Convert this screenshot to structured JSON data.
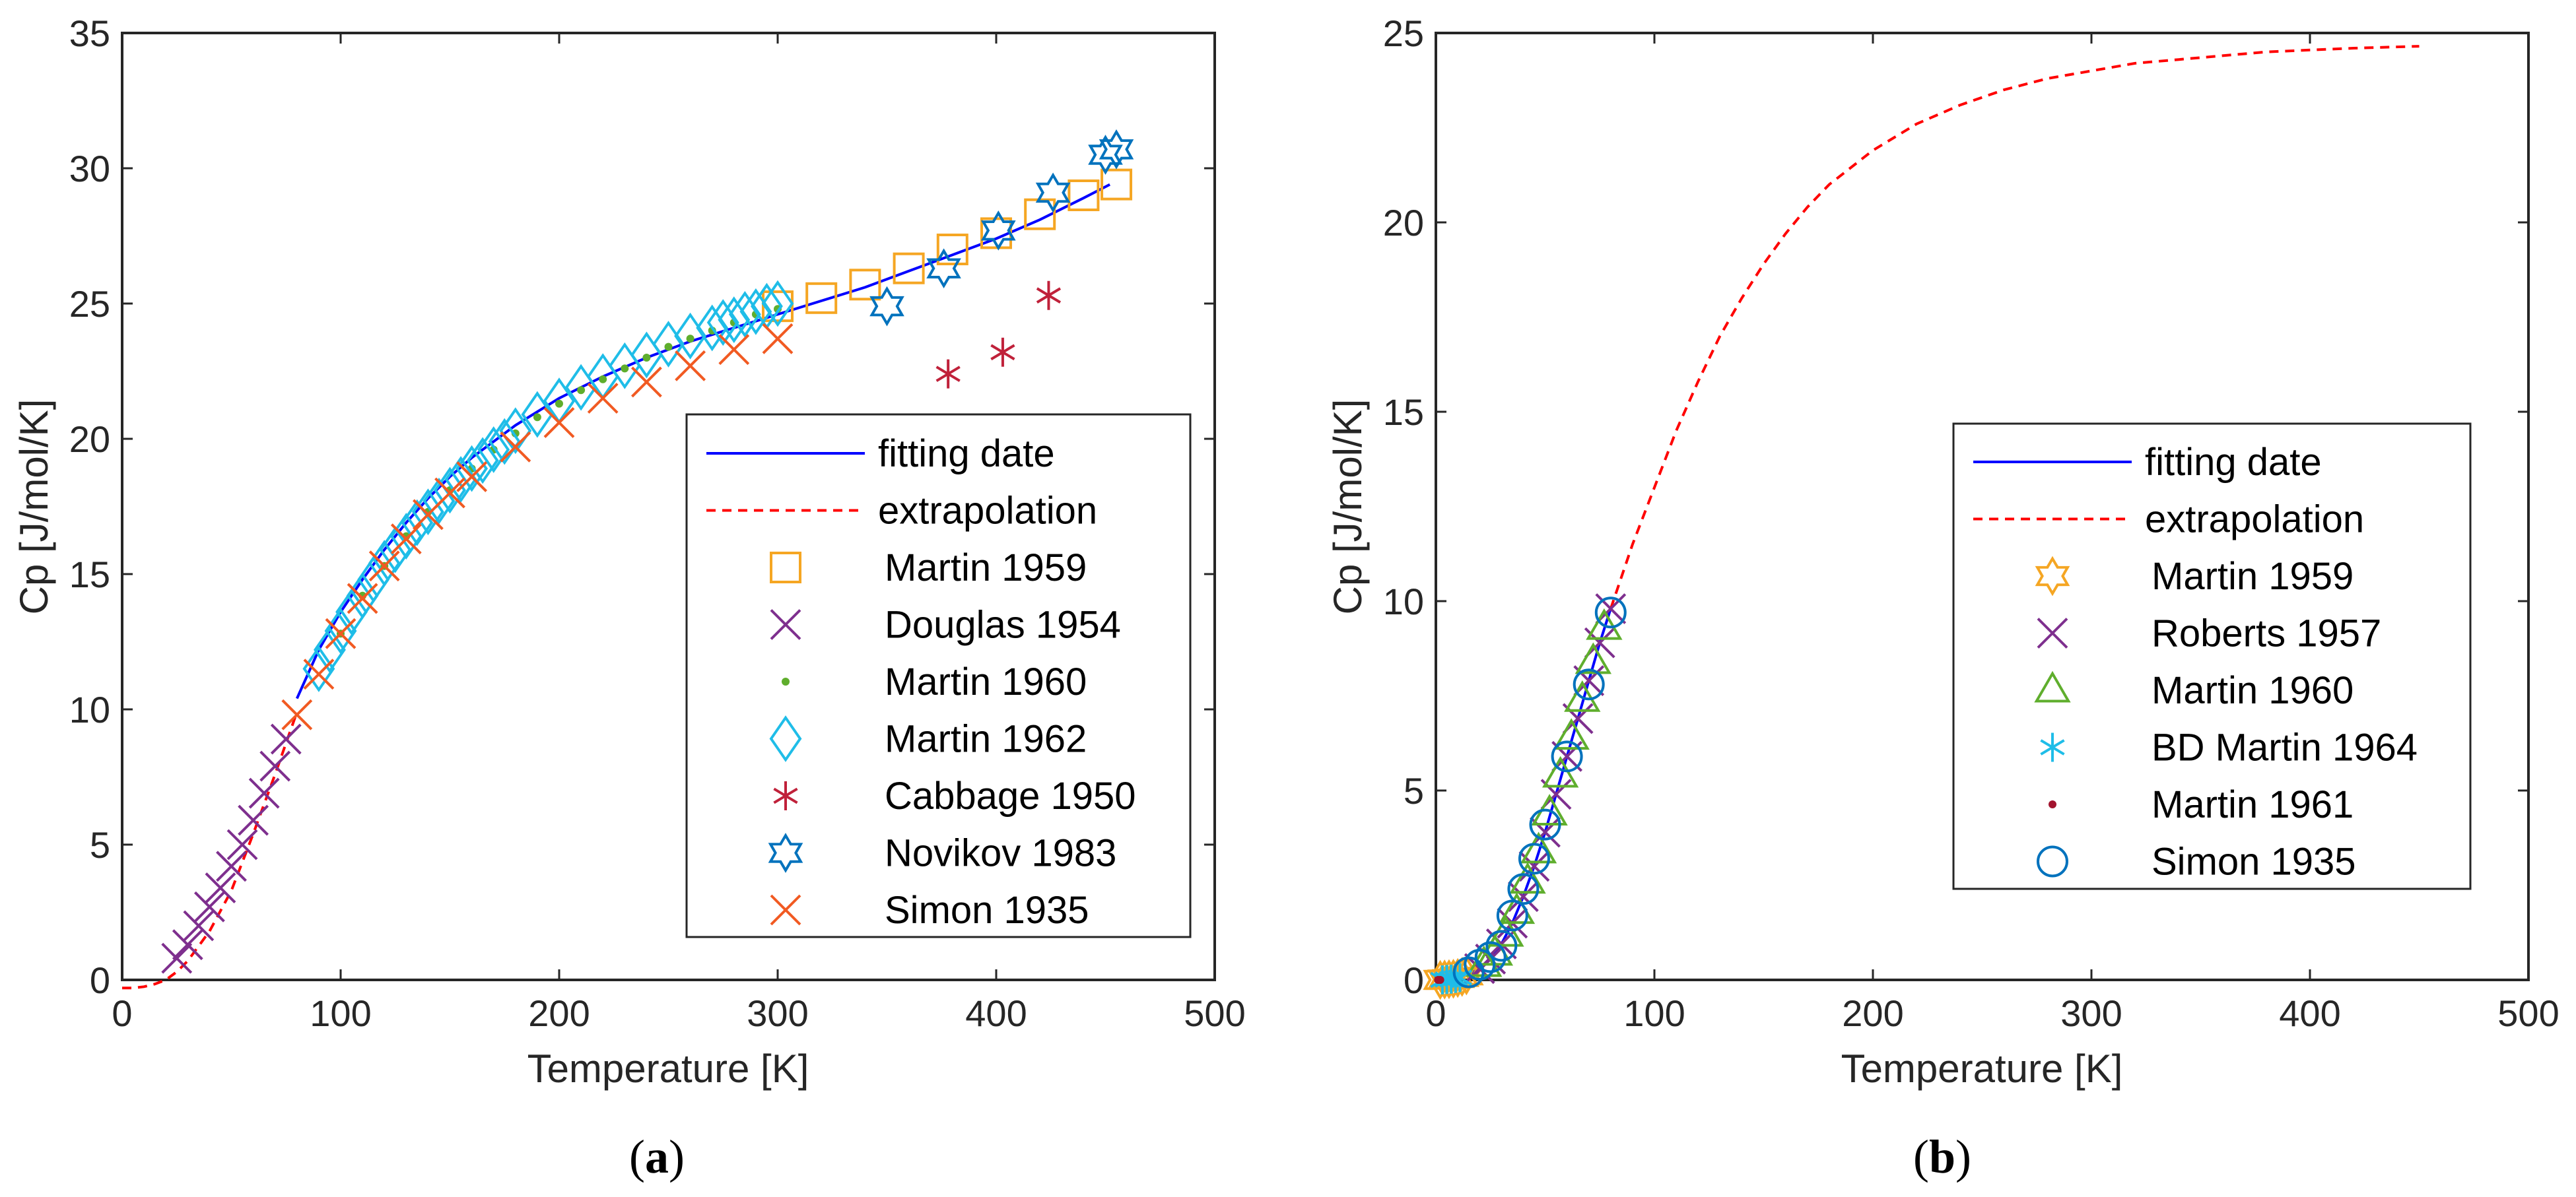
{
  "chart_data": [
    {
      "type": "scatter",
      "id": "a",
      "caption_letter": "a",
      "xlabel": "Temperature [K]",
      "ylabel": "Cp [J/mol/K]",
      "xlim": [
        0,
        500
      ],
      "ylim": [
        0,
        35
      ],
      "xticks": [
        0,
        100,
        200,
        300,
        400,
        500
      ],
      "yticks": [
        0,
        5,
        10,
        15,
        20,
        25,
        30,
        35
      ],
      "legend_position": "lower-right",
      "lines": [
        {
          "name": "fitting date",
          "style": "solid",
          "color": "#0000ff",
          "x": [
            80,
            90,
            100,
            110,
            120,
            130,
            140,
            150,
            160,
            170,
            180,
            200,
            220,
            240,
            260,
            280,
            300,
            320,
            340,
            360,
            380,
            400,
            420,
            440,
            452
          ],
          "y": [
            10.4,
            12.2,
            13.6,
            14.8,
            15.9,
            16.9,
            17.8,
            18.6,
            19.3,
            19.9,
            20.5,
            21.5,
            22.3,
            23.0,
            23.6,
            24.1,
            24.6,
            25.1,
            25.6,
            26.2,
            26.8,
            27.4,
            28.1,
            28.9,
            29.4
          ]
        },
        {
          "name": "extrapolation",
          "style": "dashed",
          "color": "#ff0000",
          "x": [
            0,
            5,
            10,
            15,
            20,
            25,
            30,
            40,
            50,
            60,
            70,
            80
          ],
          "y": [
            -0.3,
            -0.3,
            -0.25,
            -0.15,
            0.0,
            0.3,
            0.7,
            1.8,
            3.3,
            5.4,
            7.6,
            9.9
          ]
        }
      ],
      "series": [
        {
          "name": "Martin 1959",
          "marker": "square",
          "color": "#f5a623",
          "x": [
            300,
            320,
            340,
            360,
            380,
            400,
            420,
            440,
            455
          ],
          "y": [
            24.9,
            25.2,
            25.7,
            26.3,
            27.0,
            27.6,
            28.3,
            29.0,
            29.4
          ]
        },
        {
          "name": "Douglas 1954",
          "marker": "x",
          "color": "#7e2f8e",
          "x": [
            25,
            30,
            35,
            40,
            45,
            50,
            55,
            60,
            65,
            70,
            75
          ],
          "y": [
            0.8,
            1.3,
            2.0,
            2.7,
            3.4,
            4.2,
            5.0,
            5.9,
            6.9,
            7.9,
            8.9
          ]
        },
        {
          "name": "Martin 1960",
          "marker": "dot",
          "color": "#5fae2d",
          "x": [
            100,
            110,
            120,
            130,
            140,
            150,
            160,
            170,
            180,
            190,
            200,
            210,
            220,
            230,
            240,
            250,
            260,
            270,
            280,
            290,
            300
          ],
          "y": [
            12.8,
            14.2,
            15.3,
            16.4,
            17.3,
            18.1,
            18.9,
            19.6,
            20.2,
            20.8,
            21.3,
            21.8,
            22.2,
            22.6,
            23.0,
            23.4,
            23.7,
            24.0,
            24.3,
            24.6,
            24.8
          ]
        },
        {
          "name": "Martin 1962",
          "marker": "diamond",
          "color": "#1fbde8",
          "x": [
            90,
            95,
            100,
            105,
            110,
            115,
            120,
            125,
            130,
            135,
            140,
            145,
            150,
            155,
            160,
            165,
            170,
            175,
            180,
            190,
            200,
            210,
            220,
            230,
            240,
            250,
            260,
            270,
            275,
            280,
            285,
            290,
            295,
            300
          ],
          "y": [
            11.5,
            12.2,
            12.9,
            13.6,
            14.2,
            14.8,
            15.4,
            15.9,
            16.4,
            16.9,
            17.3,
            17.7,
            18.1,
            18.5,
            18.9,
            19.2,
            19.6,
            19.9,
            20.3,
            20.9,
            21.4,
            21.9,
            22.3,
            22.7,
            23.1,
            23.5,
            23.8,
            24.1,
            24.3,
            24.4,
            24.6,
            24.7,
            24.9,
            25.0
          ]
        },
        {
          "name": "Cabbage 1950",
          "marker": "asterisk",
          "color": "#c0213a",
          "x": [
            378,
            403,
            424
          ],
          "y": [
            22.4,
            23.2,
            25.3
          ]
        },
        {
          "name": "Novikov 1983",
          "marker": "hexagram",
          "color": "#0072bd",
          "x": [
            350,
            376,
            401,
            426,
            450,
            455
          ],
          "y": [
            24.9,
            26.3,
            27.7,
            29.1,
            30.5,
            30.7
          ]
        },
        {
          "name": "Simon 1935",
          "marker": "x",
          "color": "#f15a22",
          "x": [
            80,
            90,
            100,
            110,
            120,
            130,
            140,
            150,
            160,
            180,
            200,
            220,
            240,
            260,
            280,
            300
          ],
          "y": [
            9.8,
            11.3,
            12.8,
            14.1,
            15.3,
            16.3,
            17.2,
            18.0,
            18.6,
            19.7,
            20.6,
            21.5,
            22.1,
            22.7,
            23.3,
            23.7
          ]
        }
      ]
    },
    {
      "type": "scatter",
      "id": "b",
      "caption_letter": "b",
      "xlabel": "Temperature [K]",
      "ylabel": "Cp [J/mol/K]",
      "xlim": [
        0,
        500
      ],
      "ylim": [
        0,
        25
      ],
      "xticks": [
        0,
        100,
        200,
        300,
        400,
        500
      ],
      "yticks": [
        0,
        5,
        10,
        15,
        20,
        25
      ],
      "legend_position": "center-right",
      "lines": [
        {
          "name": "fitting date",
          "style": "solid",
          "color": "#0000ff",
          "x": [
            0,
            5,
            10,
            15,
            20,
            25,
            30,
            35,
            40,
            45,
            50,
            55,
            60,
            65,
            70,
            75,
            80
          ],
          "y": [
            0.0,
            0.01,
            0.05,
            0.15,
            0.3,
            0.55,
            0.95,
            1.5,
            2.2,
            3.0,
            3.9,
            4.9,
            5.9,
            6.9,
            7.9,
            8.9,
            9.8
          ]
        },
        {
          "name": "extrapolation",
          "style": "dashed",
          "color": "#ff0000",
          "x": [
            80,
            90,
            100,
            110,
            120,
            130,
            140,
            150,
            160,
            170,
            180,
            200,
            220,
            240,
            260,
            280,
            300,
            320,
            340,
            360,
            380,
            400,
            420,
            450
          ],
          "y": [
            9.8,
            11.5,
            13.0,
            14.5,
            15.8,
            17.0,
            18.0,
            18.9,
            19.7,
            20.4,
            21.0,
            21.9,
            22.6,
            23.1,
            23.5,
            23.8,
            24.0,
            24.2,
            24.3,
            24.4,
            24.5,
            24.55,
            24.6,
            24.65
          ]
        }
      ],
      "series": [
        {
          "name": "Martin 1959",
          "marker": "hexagram",
          "color": "#f5a623",
          "x": [
            2,
            4,
            6,
            8,
            10,
            12,
            14
          ],
          "y": [
            0.0,
            0.01,
            0.02,
            0.03,
            0.05,
            0.08,
            0.12
          ]
        },
        {
          "name": "Roberts 1957",
          "marker": "x",
          "color": "#7e2f8e",
          "x": [
            20,
            25,
            30,
            35,
            40,
            45,
            50,
            55,
            60,
            65,
            70,
            75,
            80
          ],
          "y": [
            0.3,
            0.55,
            0.95,
            1.5,
            2.2,
            3.0,
            3.9,
            4.9,
            5.9,
            6.9,
            7.9,
            8.9,
            9.8
          ]
        },
        {
          "name": "Martin 1960",
          "marker": "triangle",
          "color": "#5fae2d",
          "x": [
            22,
            27,
            32,
            37,
            42,
            47,
            52,
            57,
            62,
            67,
            72,
            77
          ],
          "y": [
            0.4,
            0.7,
            1.2,
            1.8,
            2.6,
            3.4,
            4.4,
            5.4,
            6.4,
            7.4,
            8.4,
            9.3
          ]
        },
        {
          "name": "BD Martin 1964",
          "marker": "asterisk",
          "color": "#1fbde8",
          "x": [
            3,
            5,
            7,
            9,
            11
          ],
          "y": [
            0.0,
            0.01,
            0.02,
            0.04,
            0.06
          ]
        },
        {
          "name": "Martin 1961",
          "marker": "dot",
          "color": "#a2142f",
          "x": [
            1,
            2
          ],
          "y": [
            0.0,
            0.0
          ]
        },
        {
          "name": "Simon 1935",
          "marker": "circle",
          "color": "#0072bd",
          "x": [
            15,
            20,
            25,
            30,
            35,
            40,
            45,
            50,
            60,
            70,
            80
          ],
          "y": [
            0.2,
            0.4,
            0.6,
            0.9,
            1.7,
            2.4,
            3.2,
            4.1,
            5.9,
            7.8,
            9.7
          ]
        }
      ]
    }
  ]
}
